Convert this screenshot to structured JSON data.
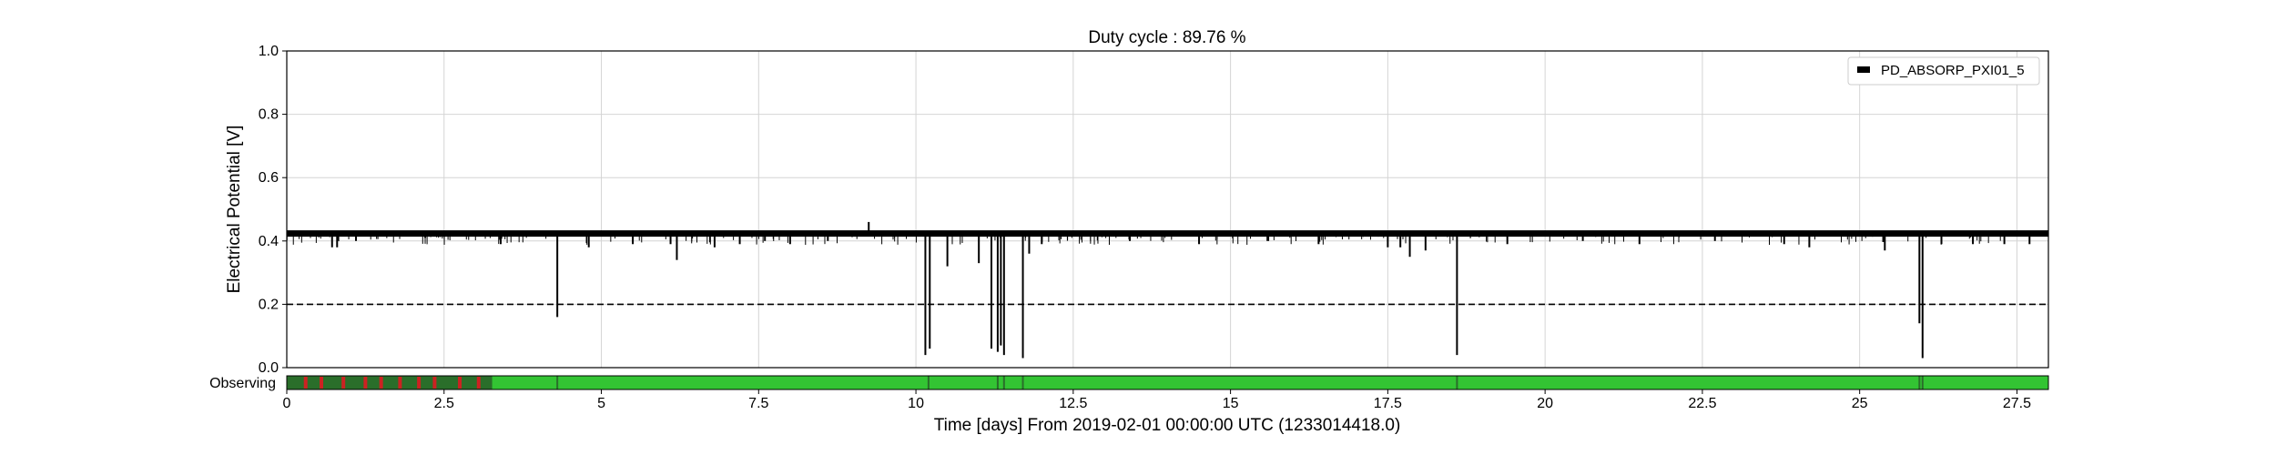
{
  "chart_data": {
    "type": "line",
    "title": "Duty cycle : 89.76 %",
    "xlabel": "Time [days] From 2019-02-01 00:00:00 UTC (1233014418.0)",
    "ylabel": "Electrical Potential [V]",
    "xlim": [
      0,
      28
    ],
    "ylim": [
      0.0,
      1.0
    ],
    "xticks": [
      0,
      2.5,
      5,
      7.5,
      10,
      12.5,
      15,
      17.5,
      20,
      22.5,
      25,
      27.5
    ],
    "xtick_labels": [
      "0",
      "2.5",
      "5",
      "7.5",
      "10",
      "12.5",
      "15",
      "17.5",
      "20",
      "22.5",
      "25",
      "27.5"
    ],
    "yticks": [
      0.0,
      0.2,
      0.4,
      0.6,
      0.8,
      1.0
    ],
    "ytick_labels": [
      "0.0",
      "0.2",
      "0.4",
      "0.6",
      "0.8",
      "1.0"
    ],
    "grid": true,
    "legend_position": "top-right",
    "series": [
      {
        "name": "PD_ABSORP_PXI01_5",
        "color": "#000000",
        "baseline": 0.425,
        "dips": [
          {
            "x": 0.72,
            "y": 0.38
          },
          {
            "x": 0.8,
            "y": 0.38
          },
          {
            "x": 1.1,
            "y": 0.4
          },
          {
            "x": 2.2,
            "y": 0.41
          },
          {
            "x": 3.4,
            "y": 0.39
          },
          {
            "x": 4.3,
            "y": 0.16
          },
          {
            "x": 4.8,
            "y": 0.38
          },
          {
            "x": 5.5,
            "y": 0.39
          },
          {
            "x": 6.1,
            "y": 0.39
          },
          {
            "x": 6.2,
            "y": 0.34
          },
          {
            "x": 6.8,
            "y": 0.38
          },
          {
            "x": 7.2,
            "y": 0.39
          },
          {
            "x": 7.6,
            "y": 0.4
          },
          {
            "x": 8.0,
            "y": 0.39
          },
          {
            "x": 8.6,
            "y": 0.4
          },
          {
            "x": 10.15,
            "y": 0.04
          },
          {
            "x": 10.22,
            "y": 0.06
          },
          {
            "x": 10.5,
            "y": 0.32
          },
          {
            "x": 11.0,
            "y": 0.33
          },
          {
            "x": 11.2,
            "y": 0.06
          },
          {
            "x": 11.3,
            "y": 0.05
          },
          {
            "x": 11.35,
            "y": 0.07
          },
          {
            "x": 11.4,
            "y": 0.04
          },
          {
            "x": 11.7,
            "y": 0.03
          },
          {
            "x": 11.8,
            "y": 0.36
          },
          {
            "x": 12.0,
            "y": 0.39
          },
          {
            "x": 13.4,
            "y": 0.4
          },
          {
            "x": 14.5,
            "y": 0.39
          },
          {
            "x": 15.6,
            "y": 0.4
          },
          {
            "x": 16.4,
            "y": 0.39
          },
          {
            "x": 17.5,
            "y": 0.38
          },
          {
            "x": 17.7,
            "y": 0.38
          },
          {
            "x": 17.85,
            "y": 0.35
          },
          {
            "x": 18.1,
            "y": 0.37
          },
          {
            "x": 18.6,
            "y": 0.04
          },
          {
            "x": 19.4,
            "y": 0.39
          },
          {
            "x": 20.6,
            "y": 0.4
          },
          {
            "x": 21.5,
            "y": 0.39
          },
          {
            "x": 22.7,
            "y": 0.4
          },
          {
            "x": 23.8,
            "y": 0.39
          },
          {
            "x": 24.2,
            "y": 0.38
          },
          {
            "x": 25.4,
            "y": 0.37
          },
          {
            "x": 25.95,
            "y": 0.14
          },
          {
            "x": 26.0,
            "y": 0.03
          },
          {
            "x": 26.3,
            "y": 0.39
          },
          {
            "x": 26.8,
            "y": 0.39
          },
          {
            "x": 27.3,
            "y": 0.39
          },
          {
            "x": 27.7,
            "y": 0.39
          }
        ],
        "spikes": [
          {
            "x": 9.25,
            "y": 0.46
          }
        ]
      }
    ],
    "threshold": {
      "y": 0.2,
      "style": "dashed",
      "color": "#000000"
    },
    "state_bar": {
      "label": "Observing",
      "active_color": "#33c433",
      "dark_color": "#2a6e2a",
      "flag_color": "#cc2222",
      "dark_spans": [
        [
          0,
          3.25
        ]
      ],
      "flag_marks": [
        0.3,
        0.55,
        0.9,
        1.25,
        1.5,
        1.8,
        2.1,
        2.35,
        2.75,
        3.05
      ],
      "dark_lines": [
        3.25,
        4.3,
        10.2,
        11.3,
        11.4,
        11.7,
        18.6,
        25.95,
        26.0
      ]
    }
  }
}
